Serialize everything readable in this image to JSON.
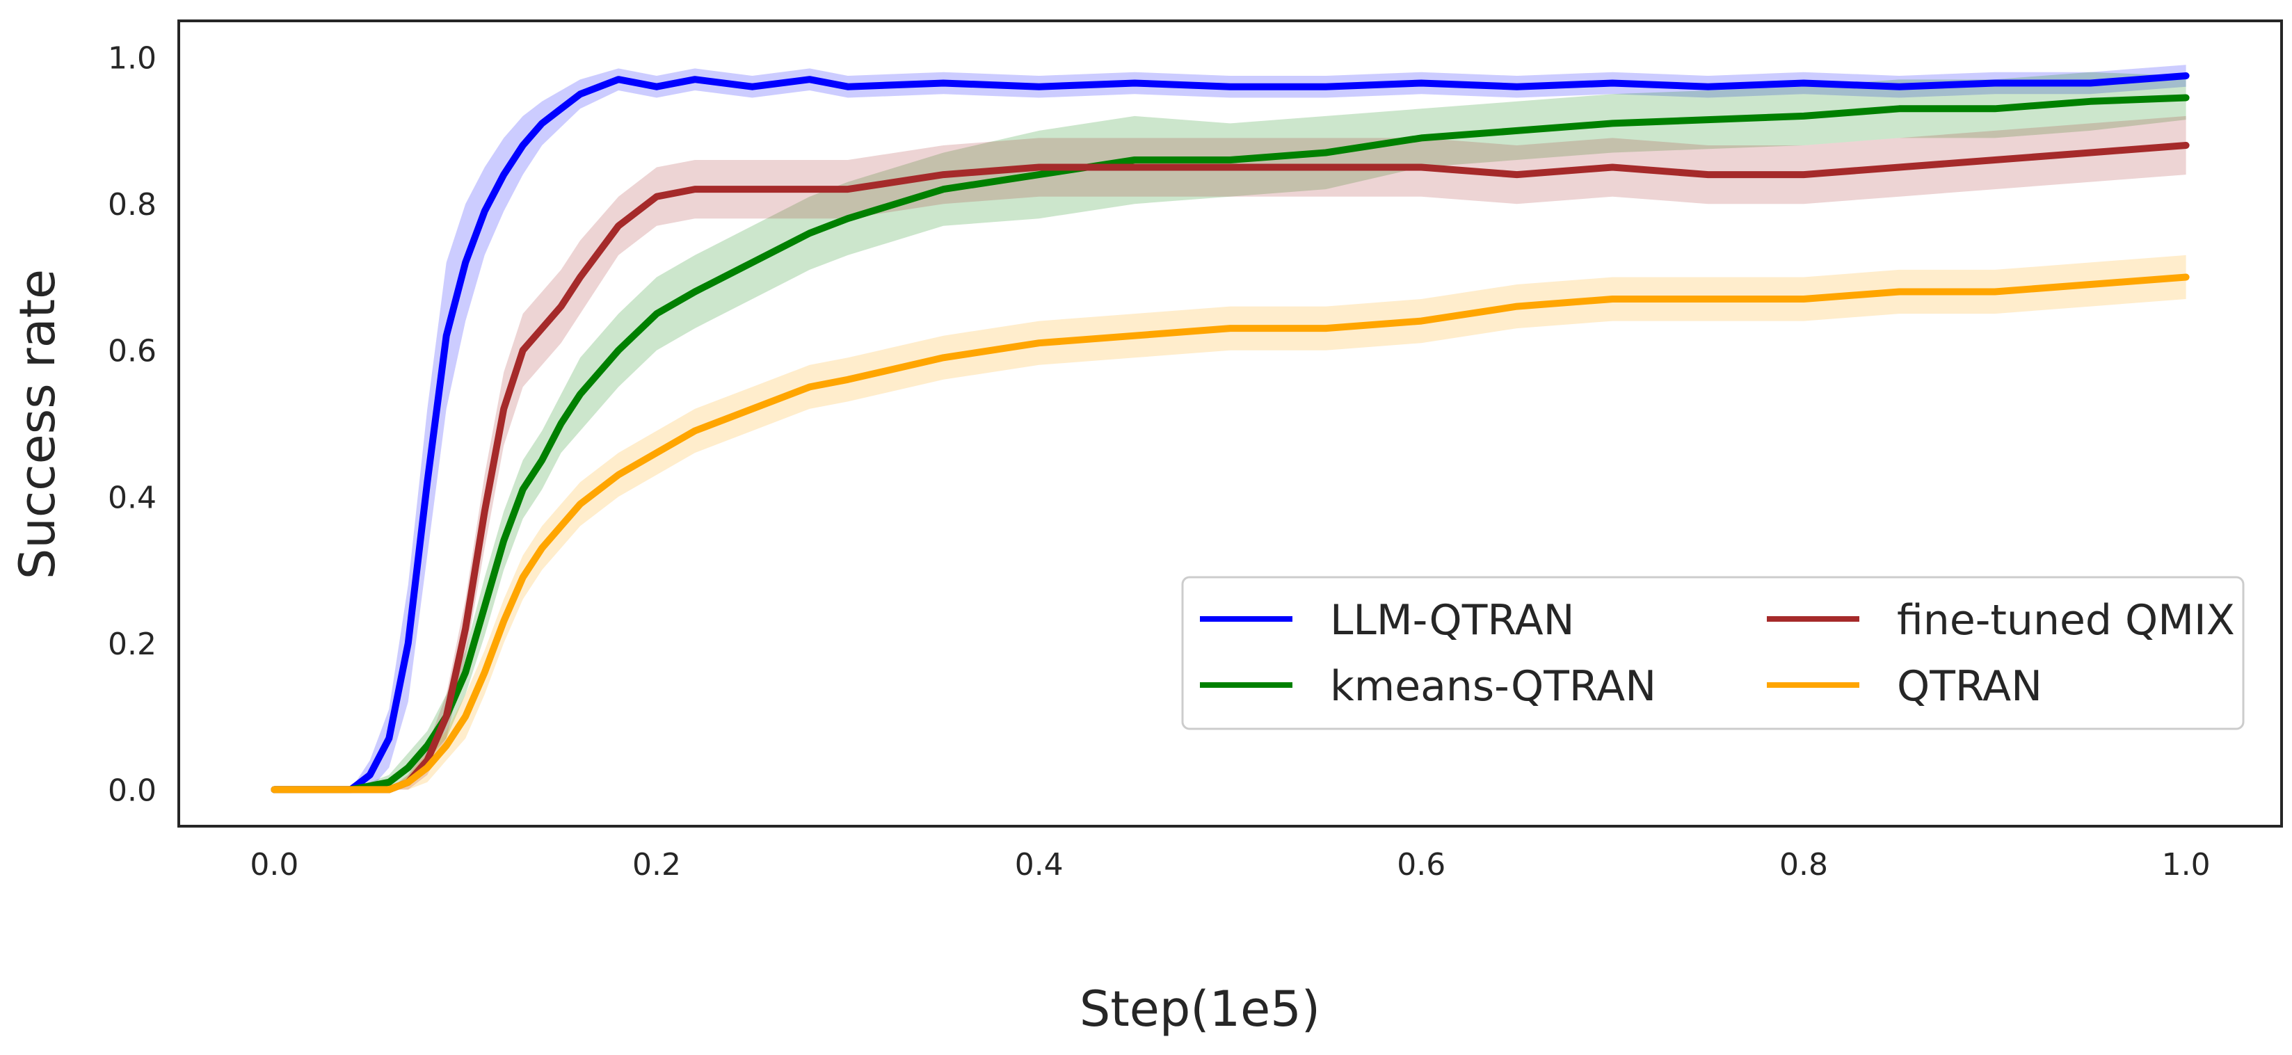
{
  "chart_data": {
    "type": "line",
    "title": "",
    "xlabel": "Step(1e5)",
    "ylabel": "Success rate",
    "xlim": [
      -0.05,
      1.05
    ],
    "ylim": [
      -0.05,
      1.05
    ],
    "xticks": [
      0.0,
      0.2,
      0.4,
      0.6,
      0.8,
      1.0
    ],
    "xtick_labels": [
      "0.0",
      "0.2",
      "0.4",
      "0.6",
      "0.8",
      "1.0"
    ],
    "yticks": [
      0.0,
      0.2,
      0.4,
      0.6,
      0.8,
      1.0
    ],
    "ytick_labels": [
      "0.0",
      "0.2",
      "0.4",
      "0.6",
      "0.8",
      "1.0"
    ],
    "grid": false,
    "legend": {
      "location": "center-right",
      "columns": 2
    },
    "series": [
      {
        "name": "LLM-QTRAN",
        "color": "#0000ff",
        "x": [
          0.0,
          0.02,
          0.04,
          0.05,
          0.06,
          0.07,
          0.08,
          0.09,
          0.1,
          0.11,
          0.12,
          0.13,
          0.14,
          0.15,
          0.16,
          0.18,
          0.2,
          0.22,
          0.25,
          0.28,
          0.3,
          0.35,
          0.4,
          0.45,
          0.5,
          0.55,
          0.6,
          0.65,
          0.7,
          0.75,
          0.8,
          0.85,
          0.9,
          0.95,
          1.0
        ],
        "values": [
          0.0,
          0.0,
          0.0,
          0.02,
          0.07,
          0.2,
          0.42,
          0.62,
          0.72,
          0.79,
          0.84,
          0.88,
          0.91,
          0.93,
          0.95,
          0.97,
          0.96,
          0.97,
          0.96,
          0.97,
          0.96,
          0.965,
          0.96,
          0.965,
          0.96,
          0.96,
          0.965,
          0.96,
          0.965,
          0.96,
          0.965,
          0.96,
          0.965,
          0.965,
          0.975
        ],
        "band": [
          0.0,
          0.0,
          0.0,
          0.02,
          0.04,
          0.08,
          0.1,
          0.1,
          0.08,
          0.06,
          0.05,
          0.04,
          0.03,
          0.025,
          0.02,
          0.015,
          0.015,
          0.015,
          0.015,
          0.015,
          0.015,
          0.015,
          0.015,
          0.015,
          0.015,
          0.015,
          0.015,
          0.015,
          0.015,
          0.015,
          0.015,
          0.015,
          0.015,
          0.015,
          0.015
        ]
      },
      {
        "name": "kmeans-QTRAN",
        "color": "#008000",
        "x": [
          0.0,
          0.04,
          0.06,
          0.07,
          0.08,
          0.09,
          0.1,
          0.11,
          0.12,
          0.13,
          0.14,
          0.15,
          0.16,
          0.18,
          0.2,
          0.22,
          0.25,
          0.28,
          0.3,
          0.35,
          0.4,
          0.45,
          0.5,
          0.55,
          0.6,
          0.65,
          0.7,
          0.75,
          0.8,
          0.85,
          0.9,
          0.95,
          1.0
        ],
        "values": [
          0.0,
          0.0,
          0.01,
          0.03,
          0.06,
          0.1,
          0.16,
          0.25,
          0.34,
          0.41,
          0.45,
          0.5,
          0.54,
          0.6,
          0.65,
          0.68,
          0.72,
          0.76,
          0.78,
          0.82,
          0.84,
          0.86,
          0.86,
          0.87,
          0.89,
          0.9,
          0.91,
          0.915,
          0.92,
          0.93,
          0.93,
          0.94,
          0.945
        ],
        "band": [
          0.0,
          0.0,
          0.01,
          0.02,
          0.02,
          0.03,
          0.03,
          0.04,
          0.04,
          0.04,
          0.04,
          0.04,
          0.05,
          0.05,
          0.05,
          0.05,
          0.05,
          0.05,
          0.05,
          0.05,
          0.06,
          0.06,
          0.05,
          0.05,
          0.04,
          0.04,
          0.04,
          0.04,
          0.04,
          0.04,
          0.04,
          0.04,
          0.03
        ]
      },
      {
        "name": "fine-tuned QMIX",
        "color": "#a52a2a",
        "x": [
          0.0,
          0.04,
          0.06,
          0.07,
          0.08,
          0.09,
          0.1,
          0.11,
          0.12,
          0.13,
          0.14,
          0.15,
          0.16,
          0.18,
          0.2,
          0.22,
          0.25,
          0.28,
          0.3,
          0.35,
          0.4,
          0.45,
          0.5,
          0.55,
          0.6,
          0.65,
          0.7,
          0.75,
          0.8,
          0.85,
          0.9,
          0.95,
          1.0
        ],
        "values": [
          0.0,
          0.0,
          0.0,
          0.01,
          0.04,
          0.1,
          0.22,
          0.38,
          0.52,
          0.6,
          0.63,
          0.66,
          0.7,
          0.77,
          0.81,
          0.82,
          0.82,
          0.82,
          0.82,
          0.84,
          0.85,
          0.85,
          0.85,
          0.85,
          0.85,
          0.84,
          0.85,
          0.84,
          0.84,
          0.85,
          0.86,
          0.87,
          0.88
        ],
        "band": [
          0.0,
          0.0,
          0.0,
          0.01,
          0.02,
          0.03,
          0.04,
          0.05,
          0.05,
          0.05,
          0.05,
          0.05,
          0.05,
          0.04,
          0.04,
          0.04,
          0.04,
          0.04,
          0.04,
          0.04,
          0.04,
          0.04,
          0.04,
          0.04,
          0.04,
          0.04,
          0.04,
          0.04,
          0.04,
          0.04,
          0.04,
          0.04,
          0.04
        ]
      },
      {
        "name": "QTRAN",
        "color": "#ffa500",
        "x": [
          0.0,
          0.04,
          0.06,
          0.07,
          0.08,
          0.09,
          0.1,
          0.11,
          0.12,
          0.13,
          0.14,
          0.15,
          0.16,
          0.18,
          0.2,
          0.22,
          0.25,
          0.28,
          0.3,
          0.35,
          0.4,
          0.45,
          0.5,
          0.55,
          0.6,
          0.65,
          0.7,
          0.75,
          0.8,
          0.85,
          0.9,
          0.95,
          1.0
        ],
        "values": [
          0.0,
          0.0,
          0.0,
          0.01,
          0.03,
          0.06,
          0.1,
          0.16,
          0.23,
          0.29,
          0.33,
          0.36,
          0.39,
          0.43,
          0.46,
          0.49,
          0.52,
          0.55,
          0.56,
          0.59,
          0.61,
          0.62,
          0.63,
          0.63,
          0.64,
          0.66,
          0.67,
          0.67,
          0.67,
          0.68,
          0.68,
          0.69,
          0.7
        ],
        "band": [
          0.0,
          0.0,
          0.0,
          0.01,
          0.02,
          0.02,
          0.03,
          0.03,
          0.03,
          0.03,
          0.03,
          0.03,
          0.03,
          0.03,
          0.03,
          0.03,
          0.03,
          0.03,
          0.03,
          0.03,
          0.03,
          0.03,
          0.03,
          0.03,
          0.03,
          0.03,
          0.03,
          0.03,
          0.03,
          0.03,
          0.03,
          0.03,
          0.03
        ]
      }
    ]
  }
}
